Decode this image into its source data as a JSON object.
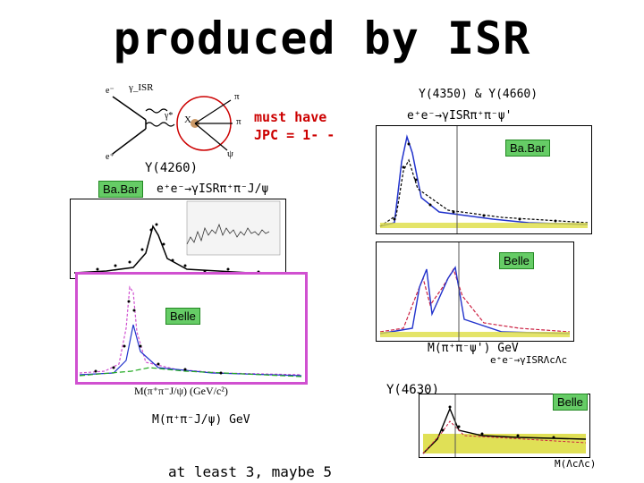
{
  "slide": {
    "title": "produced by ISR",
    "isr_diagram": {
      "gamma_isr": "γ_ISR",
      "e_minus": "e⁻",
      "e_plus": "e⁺",
      "gamma_star": "γ*",
      "x": "X",
      "pi_top": "π",
      "pi_mid": "π",
      "psi": "ψ",
      "note_line1": "must have",
      "note_line2": "JPC = 1- -"
    },
    "y4260": {
      "label": "Y(4260)",
      "experiment_tag": "Ba.Bar",
      "reaction": "e⁺e⁻→γISRπ⁺π⁻J/ψ"
    },
    "y4350": {
      "label": "Y(4350) & Y(4660)",
      "reaction": "e⁺e⁻→γISRπ⁺π⁻ψ'",
      "experiment_tag": "Ba.Bar",
      "belle_tag": "Belle",
      "mass_label": "M(π⁺π⁻ψ')  GeV"
    },
    "belle_jpsi": {
      "experiment_tag": "Belle",
      "mass_label": "M(π⁺π⁻J/ψ)  GeV",
      "axis_x_label": "M(π⁺π⁻J/ψ) (GeV/c²)"
    },
    "y4630": {
      "label": "Y(4630)",
      "reaction": "e⁺e⁻→γISRΛcΛc",
      "experiment_tag": "Belle",
      "mass_label": "M(ΛcΛc)"
    },
    "footer": "at least 3, maybe 5"
  },
  "colors": {
    "accent_red": "#cc0000",
    "tag_green": "#66cc66",
    "frame_pink": "#d050d0",
    "data_blue": "#2233cc"
  }
}
